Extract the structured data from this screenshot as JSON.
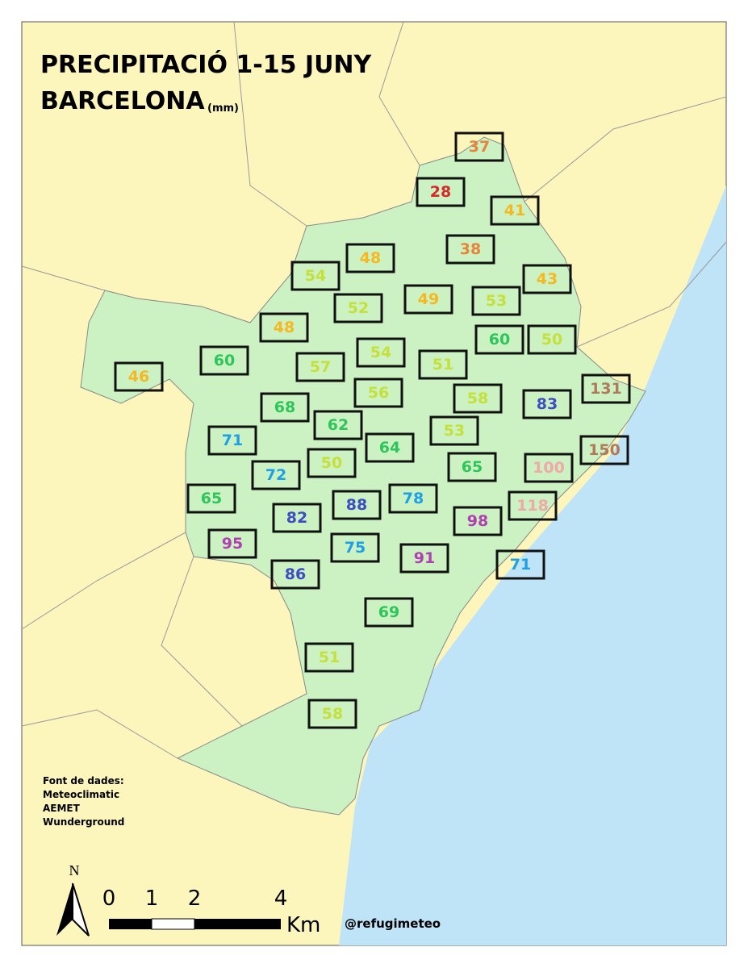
{
  "header": {
    "title": "PRECIPITACIÓ 1-15 JUNY",
    "subtitle": "BARCELONA",
    "unit": "(mm)"
  },
  "stations": [
    {
      "value": 37,
      "color": "#e8833a"
    },
    {
      "value": 28,
      "color": "#d42a2a"
    },
    {
      "value": 41,
      "color": "#f5b820"
    },
    {
      "value": 38,
      "color": "#e8833a"
    },
    {
      "value": 48,
      "color": "#f5b820"
    },
    {
      "value": 54,
      "color": "#c5e03a"
    },
    {
      "value": 43,
      "color": "#f5b820"
    },
    {
      "value": 49,
      "color": "#f5b820"
    },
    {
      "value": 53,
      "color": "#c5e03a"
    },
    {
      "value": 52,
      "color": "#c5e03a"
    },
    {
      "value": 48,
      "color": "#f5b820"
    },
    {
      "value": 60,
      "color": "#2ec55a"
    },
    {
      "value": 50,
      "color": "#c5e03a"
    },
    {
      "value": 54,
      "color": "#c5e03a"
    },
    {
      "value": 51,
      "color": "#c5e03a"
    },
    {
      "value": 60,
      "color": "#2ec55a"
    },
    {
      "value": 57,
      "color": "#c5e03a"
    },
    {
      "value": 46,
      "color": "#f5b820"
    },
    {
      "value": 131,
      "color": "#b07a5a"
    },
    {
      "value": 56,
      "color": "#c5e03a"
    },
    {
      "value": 58,
      "color": "#c5e03a"
    },
    {
      "value": 83,
      "color": "#3c4ec0"
    },
    {
      "value": 68,
      "color": "#2ec55a"
    },
    {
      "value": 62,
      "color": "#2ec55a"
    },
    {
      "value": 53,
      "color": "#c5e03a"
    },
    {
      "value": 71,
      "color": "#1ea0e6"
    },
    {
      "value": 64,
      "color": "#2ec55a"
    },
    {
      "value": 150,
      "color": "#b07a5a"
    },
    {
      "value": 50,
      "color": "#c5e03a"
    },
    {
      "value": 65,
      "color": "#2ec55a"
    },
    {
      "value": 100,
      "color": "#f0a8a8"
    },
    {
      "value": 72,
      "color": "#1ea0e6"
    },
    {
      "value": 65,
      "color": "#2ec55a"
    },
    {
      "value": 78,
      "color": "#1ea0e6"
    },
    {
      "value": 88,
      "color": "#3c4ec0"
    },
    {
      "value": 118,
      "color": "#f0a8a8"
    },
    {
      "value": 82,
      "color": "#3c4ec0"
    },
    {
      "value": 98,
      "color": "#b040b0"
    },
    {
      "value": 95,
      "color": "#b040b0"
    },
    {
      "value": 75,
      "color": "#1ea0e6"
    },
    {
      "value": 91,
      "color": "#b040b0"
    },
    {
      "value": 71,
      "color": "#1ea0e6"
    },
    {
      "value": 86,
      "color": "#3c4ec0"
    },
    {
      "value": 69,
      "color": "#2ec55a"
    },
    {
      "value": 51,
      "color": "#c5e03a"
    },
    {
      "value": 58,
      "color": "#c5e03a"
    }
  ],
  "sources": {
    "title": "Font de dades:",
    "items": [
      "Meteoclimatic",
      "AEMET",
      "Wunderground"
    ]
  },
  "scale": {
    "labels": [
      "0",
      "1",
      "2",
      "4"
    ],
    "unit": "Km"
  },
  "north": "N",
  "credit": "@refugimeteo"
}
